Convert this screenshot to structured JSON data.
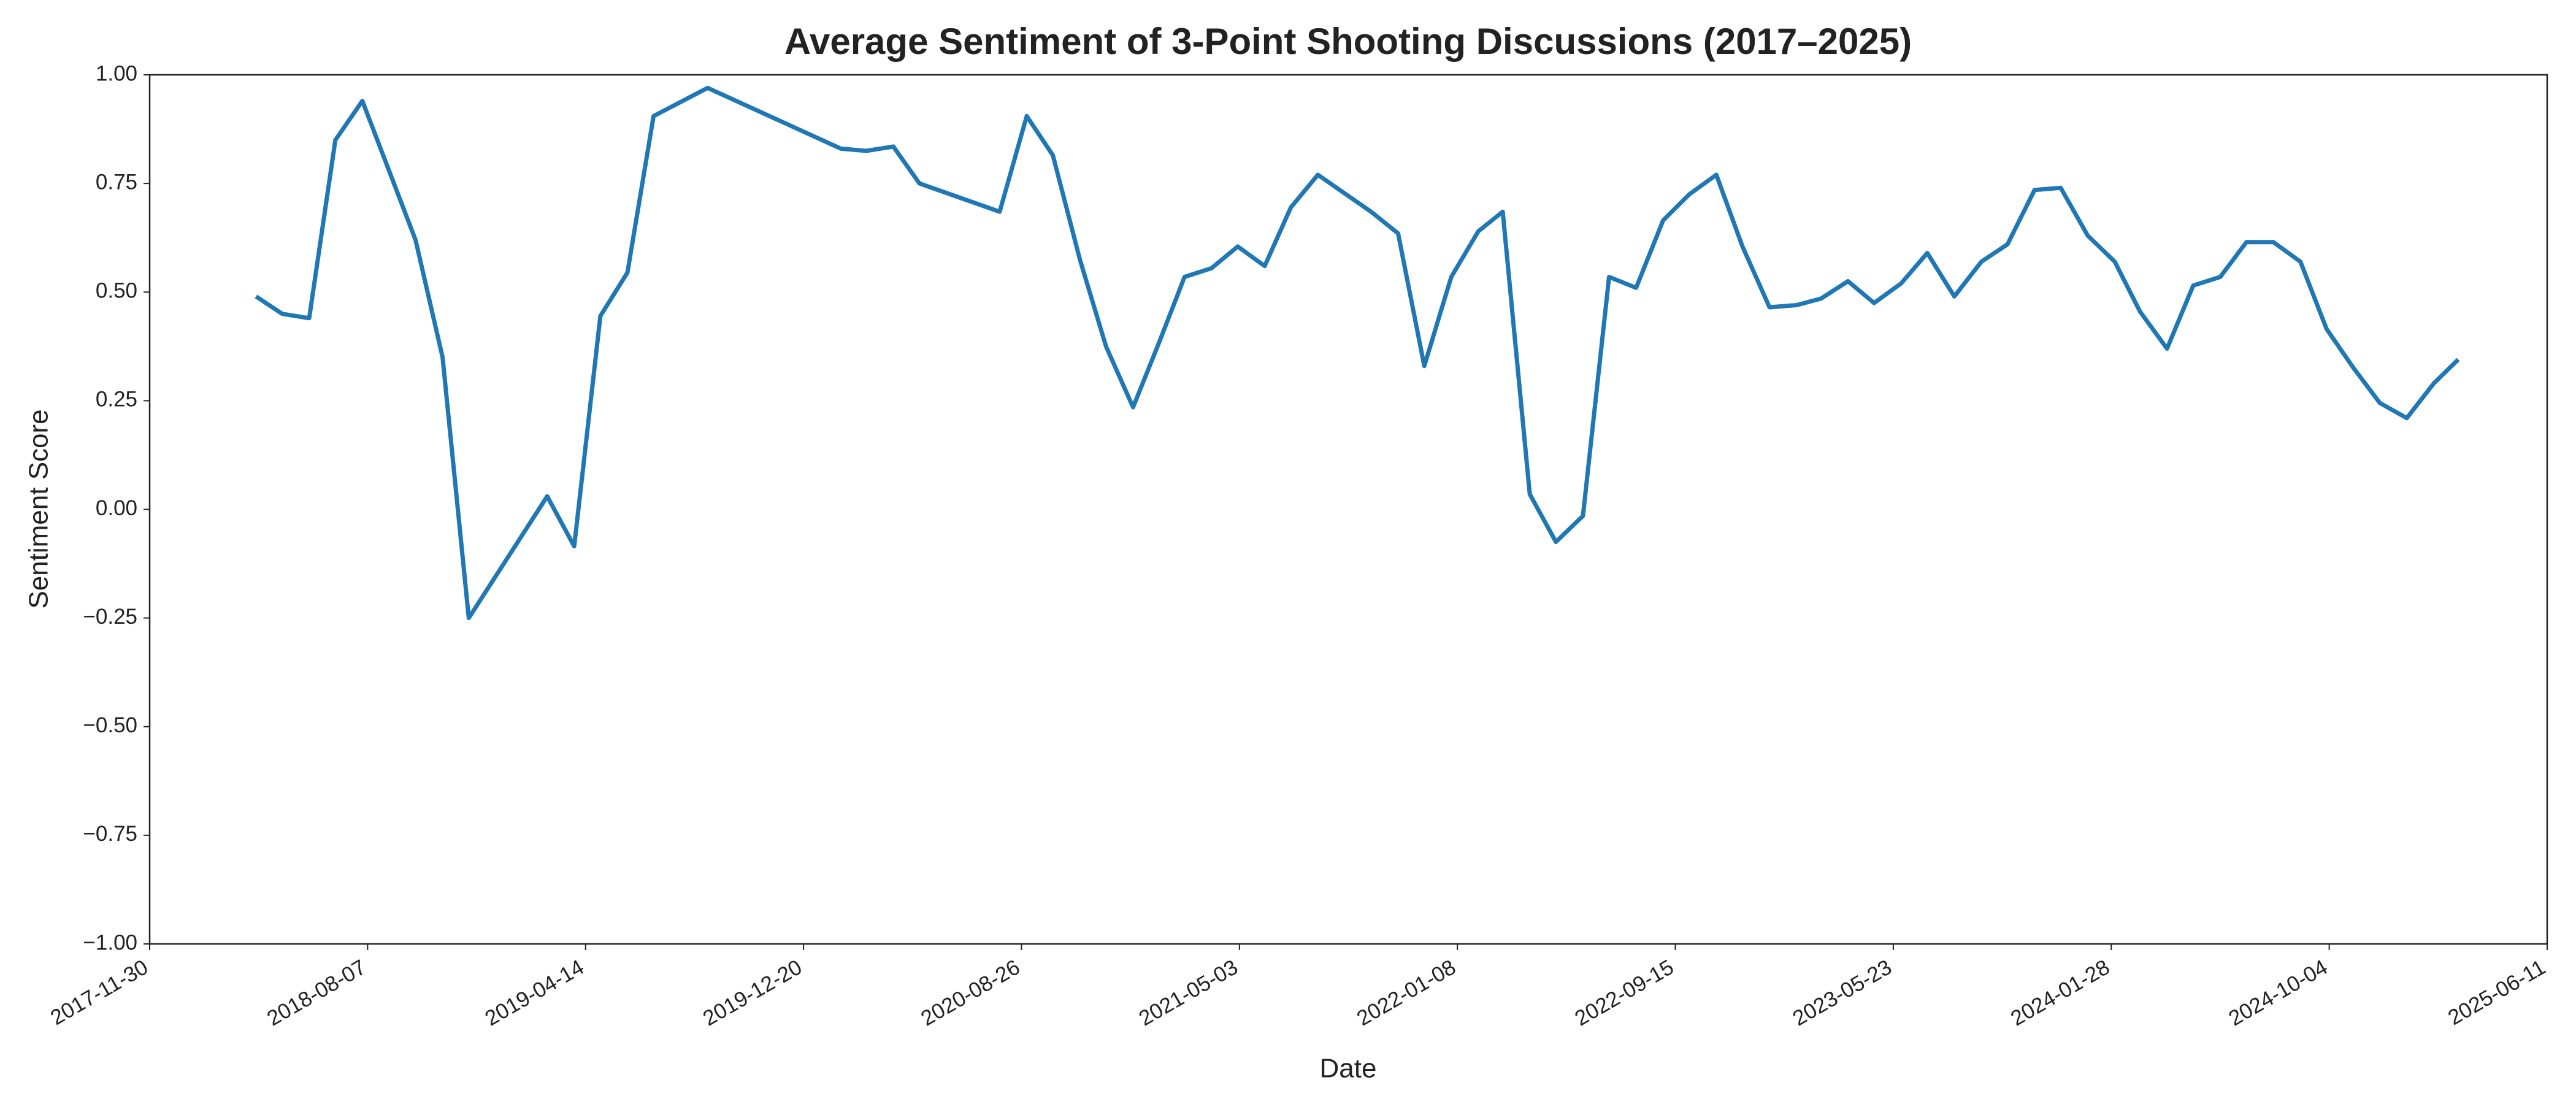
{
  "chart_data": {
    "type": "line",
    "title": "Average Sentiment of 3-Point Shooting Discussions (2017–2025)",
    "xlabel": "Date",
    "ylabel": "Sentiment Score",
    "x": [
      "2018-04-01",
      "2018-05-01",
      "2018-06-01",
      "2018-07-01",
      "2018-08-01",
      "2018-10-01",
      "2018-11-01",
      "2018-12-01",
      "2019-03-01",
      "2019-04-01",
      "2019-05-01",
      "2019-06-01",
      "2019-07-01",
      "2019-09-01",
      "2020-02-01",
      "2020-03-01",
      "2020-04-01",
      "2020-05-01",
      "2020-08-01",
      "2020-09-01",
      "2020-10-01",
      "2020-11-01",
      "2020-12-01",
      "2021-01-01",
      "2021-02-01",
      "2021-03-01",
      "2021-04-01",
      "2021-05-01",
      "2021-06-01",
      "2021-07-01",
      "2021-08-01",
      "2021-10-01",
      "2021-11-01",
      "2021-12-01",
      "2022-01-01",
      "2022-02-01",
      "2022-03-01",
      "2022-04-01",
      "2022-05-01",
      "2022-06-01",
      "2022-07-01",
      "2022-08-01",
      "2022-09-01",
      "2022-10-01",
      "2022-11-01",
      "2022-12-01",
      "2023-01-01",
      "2023-02-01",
      "2023-03-01",
      "2023-04-01",
      "2023-05-01",
      "2023-06-01",
      "2023-07-01",
      "2023-08-01",
      "2023-09-01",
      "2023-10-01",
      "2023-11-01",
      "2023-12-01",
      "2024-01-01",
      "2024-02-01",
      "2024-03-01",
      "2024-04-01",
      "2024-05-01",
      "2024-06-01",
      "2024-07-01",
      "2024-08-01",
      "2024-09-01",
      "2024-10-01",
      "2024-11-01",
      "2024-12-01",
      "2025-01-01",
      "2025-02-01",
      "2025-03-01"
    ],
    "series": [
      {
        "name": "Sentiment Score",
        "color": "#1f77b4",
        "values": [
          0.49,
          0.45,
          0.44,
          0.85,
          0.94,
          0.62,
          0.35,
          -0.25,
          0.03,
          -0.085,
          0.445,
          0.545,
          0.905,
          0.97,
          0.83,
          0.825,
          0.835,
          0.75,
          0.685,
          0.905,
          0.815,
          0.575,
          0.375,
          0.235,
          0.39,
          0.535,
          0.555,
          0.605,
          0.56,
          0.695,
          0.77,
          0.685,
          0.635,
          0.33,
          0.535,
          0.64,
          0.685,
          0.035,
          -0.075,
          -0.015,
          0.535,
          0.51,
          0.665,
          0.725,
          0.77,
          0.605,
          0.465,
          0.47,
          0.485,
          0.525,
          0.475,
          0.52,
          0.59,
          0.49,
          0.57,
          0.61,
          0.735,
          0.74,
          0.63,
          0.57,
          0.455,
          0.37,
          0.515,
          0.535,
          0.615,
          0.615,
          0.57,
          0.415,
          0.325,
          0.245,
          0.21,
          0.29,
          0.345
        ]
      }
    ],
    "xlim": [
      "2017-11-30",
      "2025-06-11"
    ],
    "xticks": [
      "2017-11-30",
      "2018-08-07",
      "2019-04-14",
      "2019-12-20",
      "2020-08-26",
      "2021-05-03",
      "2022-01-08",
      "2022-09-15",
      "2023-05-23",
      "2024-01-28",
      "2024-10-04",
      "2025-06-11"
    ],
    "ylim": [
      -1,
      1
    ],
    "yticks": [
      {
        "value": -1,
        "label": "−1.00"
      },
      {
        "value": -0.75,
        "label": "−0.75"
      },
      {
        "value": -0.5,
        "label": "−0.50"
      },
      {
        "value": -0.25,
        "label": "−0.25"
      },
      {
        "value": 0,
        "label": "0.00"
      },
      {
        "value": 0.25,
        "label": "0.25"
      },
      {
        "value": 0.5,
        "label": "0.50"
      },
      {
        "value": 0.75,
        "label": "0.75"
      },
      {
        "value": 1,
        "label": "1.00"
      }
    ],
    "grid": false
  }
}
